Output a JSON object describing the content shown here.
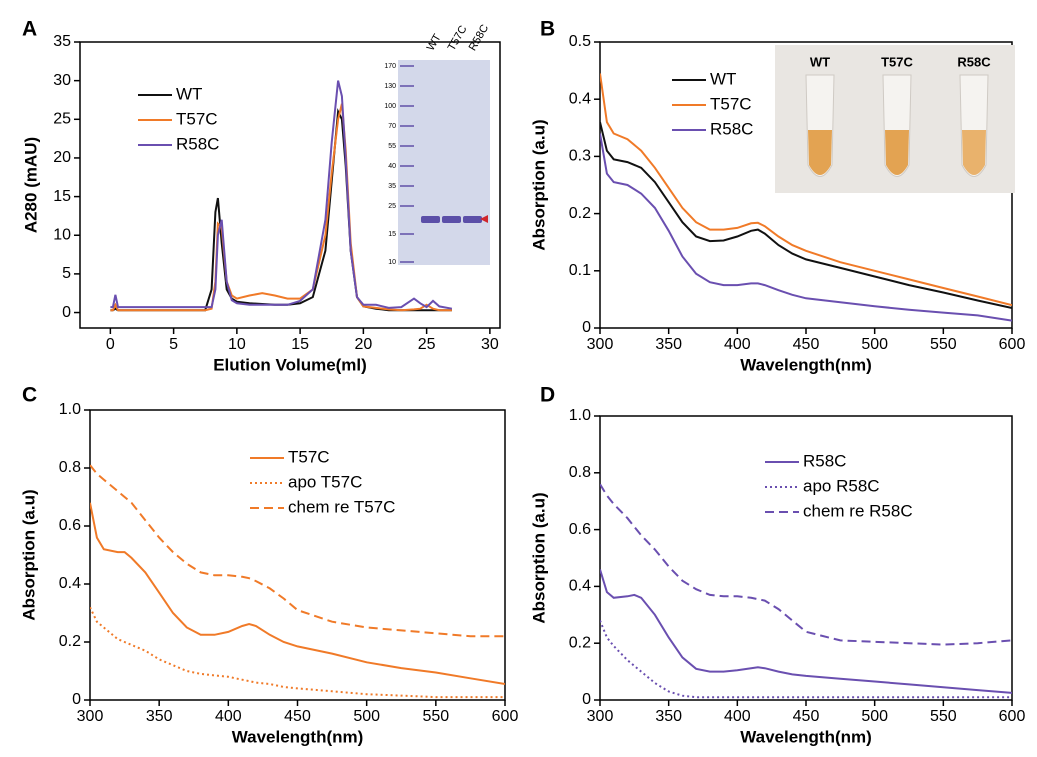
{
  "chart_data": [
    {
      "type": "line",
      "panel": "A",
      "xlabel": "Elution Volume(ml)",
      "ylabel": "A280 (mAU)",
      "x": [
        0,
        0.2,
        0.4,
        0.6,
        1,
        7.5,
        8,
        8.3,
        8.5,
        8.8,
        9.2,
        9.6,
        10,
        11,
        12,
        13,
        14,
        15,
        16,
        17,
        17.5,
        18,
        18.3,
        18.6,
        19,
        19.5,
        20,
        21,
        22,
        23,
        24,
        24.5,
        25,
        25.5,
        26,
        27
      ],
      "series": [
        {
          "name": "WT",
          "color": "#111111",
          "linestyle": "solid",
          "values": [
            0.3,
            0.3,
            0.5,
            0.3,
            0.3,
            0.3,
            3,
            13,
            14.8,
            9,
            3,
            1.8,
            1.4,
            1.2,
            1.1,
            1.0,
            1.0,
            1.2,
            2,
            8,
            17,
            26,
            25,
            19,
            8,
            2,
            0.8,
            0.5,
            0.3,
            0.3,
            0.3,
            0.3,
            0.3,
            0.3,
            0.3,
            0.3
          ]
        },
        {
          "name": "T57C",
          "color": "#f07a28",
          "linestyle": "solid",
          "values": [
            0.3,
            0.3,
            1,
            0.3,
            0.3,
            0.3,
            0.5,
            4,
            11.5,
            11,
            4,
            2.2,
            1.8,
            2.2,
            2.5,
            2.2,
            1.8,
            1.8,
            3,
            10,
            18,
            25,
            27,
            21,
            9,
            2,
            0.8,
            0.6,
            0.4,
            0.3,
            0.4,
            0.5,
            1,
            0.5,
            0.3,
            0.3
          ]
        },
        {
          "name": "R58C",
          "color": "#6a4fb0",
          "linestyle": "solid",
          "values": [
            0.7,
            0.7,
            2.3,
            0.7,
            0.7,
            0.7,
            0.7,
            3,
            10,
            12,
            4,
            1.6,
            1.2,
            1.0,
            1.0,
            1.0,
            1.0,
            1.5,
            3,
            12,
            22,
            30,
            28,
            20,
            8,
            2,
            1,
            1,
            0.6,
            0.7,
            1.8,
            1.2,
            0.7,
            1.5,
            0.8,
            0.5
          ]
        }
      ],
      "xlim": [
        -2.4,
        30.8
      ],
      "xticks": [
        0,
        5,
        10,
        15,
        20,
        25,
        30
      ],
      "ylim": [
        -2,
        35
      ],
      "yticks": [
        0,
        5,
        10,
        15,
        20,
        25,
        30,
        35
      ],
      "inset": {
        "kind": "gel",
        "lanes": [
          "WT",
          "T57C",
          "R58C"
        ],
        "markers": [
          170,
          130,
          100,
          70,
          55,
          40,
          35,
          25,
          15,
          10
        ]
      }
    },
    {
      "type": "line",
      "panel": "B",
      "xlabel": "Wavelength(nm)",
      "ylabel": "Absorption (a.u)",
      "x": [
        300,
        305,
        310,
        320,
        330,
        340,
        350,
        360,
        370,
        380,
        390,
        400,
        410,
        415,
        420,
        430,
        440,
        450,
        475,
        500,
        525,
        550,
        575,
        600
      ],
      "series": [
        {
          "name": "WT",
          "color": "#111111",
          "linestyle": "solid",
          "values": [
            0.36,
            0.31,
            0.295,
            0.29,
            0.28,
            0.255,
            0.22,
            0.185,
            0.16,
            0.152,
            0.153,
            0.16,
            0.17,
            0.172,
            0.165,
            0.145,
            0.13,
            0.12,
            0.105,
            0.09,
            0.075,
            0.062,
            0.048,
            0.035
          ]
        },
        {
          "name": "T57C",
          "color": "#f07a28",
          "linestyle": "solid",
          "values": [
            0.445,
            0.36,
            0.34,
            0.33,
            0.31,
            0.28,
            0.245,
            0.21,
            0.185,
            0.172,
            0.172,
            0.175,
            0.183,
            0.184,
            0.178,
            0.16,
            0.145,
            0.135,
            0.115,
            0.1,
            0.085,
            0.07,
            0.055,
            0.04
          ]
        },
        {
          "name": "R58C",
          "color": "#6a4fb0",
          "linestyle": "solid",
          "values": [
            0.34,
            0.27,
            0.255,
            0.25,
            0.235,
            0.21,
            0.17,
            0.125,
            0.095,
            0.08,
            0.075,
            0.075,
            0.078,
            0.078,
            0.075,
            0.066,
            0.058,
            0.052,
            0.045,
            0.038,
            0.032,
            0.027,
            0.022,
            0.013
          ]
        }
      ],
      "xlim": [
        300,
        600
      ],
      "xticks": [
        300,
        350,
        400,
        450,
        500,
        550,
        600
      ],
      "ylim": [
        0,
        0.5
      ],
      "yticks": [
        0,
        0.1,
        0.2,
        0.3,
        0.4,
        0.5
      ],
      "inset": {
        "kind": "photo",
        "lanes": [
          "WT",
          "T57C",
          "R58C"
        ]
      }
    },
    {
      "type": "line",
      "panel": "C",
      "xlabel": "Wavelength(nm)",
      "ylabel": "Absorption (a.u)",
      "x": [
        300,
        305,
        310,
        320,
        325,
        330,
        340,
        350,
        360,
        370,
        380,
        390,
        400,
        410,
        415,
        420,
        430,
        440,
        450,
        475,
        500,
        525,
        550,
        575,
        600
      ],
      "series": [
        {
          "name": "T57C",
          "color": "#f07a28",
          "linestyle": "solid",
          "values": [
            0.68,
            0.56,
            0.52,
            0.51,
            0.51,
            0.49,
            0.44,
            0.37,
            0.3,
            0.25,
            0.225,
            0.225,
            0.235,
            0.255,
            0.262,
            0.255,
            0.225,
            0.2,
            0.185,
            0.16,
            0.13,
            0.11,
            0.095,
            0.075,
            0.055
          ]
        },
        {
          "name": "apo T57C",
          "color": "#f07a28",
          "linestyle": "dotted",
          "values": [
            0.32,
            0.27,
            0.25,
            0.21,
            0.2,
            0.19,
            0.17,
            0.14,
            0.12,
            0.1,
            0.09,
            0.085,
            0.08,
            0.07,
            0.065,
            0.06,
            0.055,
            0.045,
            0.04,
            0.03,
            0.02,
            0.015,
            0.01,
            0.01,
            0.01
          ]
        },
        {
          "name": "chem re T57C",
          "color": "#f07a28",
          "linestyle": "dashed",
          "values": [
            0.81,
            0.78,
            0.76,
            0.72,
            0.7,
            0.68,
            0.62,
            0.56,
            0.51,
            0.47,
            0.44,
            0.43,
            0.43,
            0.425,
            0.42,
            0.41,
            0.385,
            0.35,
            0.31,
            0.27,
            0.25,
            0.24,
            0.23,
            0.22,
            0.22
          ]
        }
      ],
      "xlim": [
        300,
        600
      ],
      "xticks": [
        300,
        350,
        400,
        450,
        500,
        550,
        600
      ],
      "ylim": [
        0,
        1
      ],
      "yticks": [
        0,
        0.2,
        0.4,
        0.6,
        0.8,
        {
          "value": 1,
          "label": "1.0"
        }
      ]
    },
    {
      "type": "line",
      "panel": "D",
      "xlabel": "Wavelength(nm)",
      "ylabel": "Absorption (a.u)",
      "x": [
        300,
        305,
        310,
        320,
        325,
        330,
        340,
        350,
        360,
        370,
        380,
        390,
        400,
        410,
        415,
        420,
        430,
        440,
        450,
        475,
        500,
        525,
        550,
        575,
        600
      ],
      "series": [
        {
          "name": "R58C",
          "color": "#6a4fb0",
          "linestyle": "solid",
          "values": [
            0.46,
            0.38,
            0.36,
            0.365,
            0.37,
            0.36,
            0.3,
            0.22,
            0.15,
            0.11,
            0.1,
            0.1,
            0.105,
            0.112,
            0.115,
            0.112,
            0.1,
            0.09,
            0.085,
            0.075,
            0.065,
            0.055,
            0.045,
            0.035,
            0.025
          ]
        },
        {
          "name": "apo R58C",
          "color": "#6a4fb0",
          "linestyle": "dotted",
          "values": [
            0.28,
            0.22,
            0.19,
            0.14,
            0.12,
            0.1,
            0.06,
            0.03,
            0.015,
            0.01,
            0.01,
            0.01,
            0.01,
            0.01,
            0.01,
            0.01,
            0.01,
            0.01,
            0.01,
            0.01,
            0.01,
            0.01,
            0.01,
            0.01,
            0.01
          ]
        },
        {
          "name": "chem re R58C",
          "color": "#6a4fb0",
          "linestyle": "dashed",
          "values": [
            0.76,
            0.72,
            0.69,
            0.64,
            0.61,
            0.58,
            0.53,
            0.47,
            0.42,
            0.39,
            0.37,
            0.365,
            0.365,
            0.36,
            0.355,
            0.35,
            0.32,
            0.28,
            0.24,
            0.21,
            0.205,
            0.2,
            0.195,
            0.2,
            0.21
          ]
        }
      ],
      "xlim": [
        300,
        600
      ],
      "xticks": [
        300,
        350,
        400,
        450,
        500,
        550,
        600
      ],
      "ylim": [
        0,
        1
      ],
      "yticks": [
        0,
        0.2,
        0.4,
        0.6,
        0.8,
        {
          "value": 1,
          "label": "1.0"
        }
      ]
    }
  ]
}
